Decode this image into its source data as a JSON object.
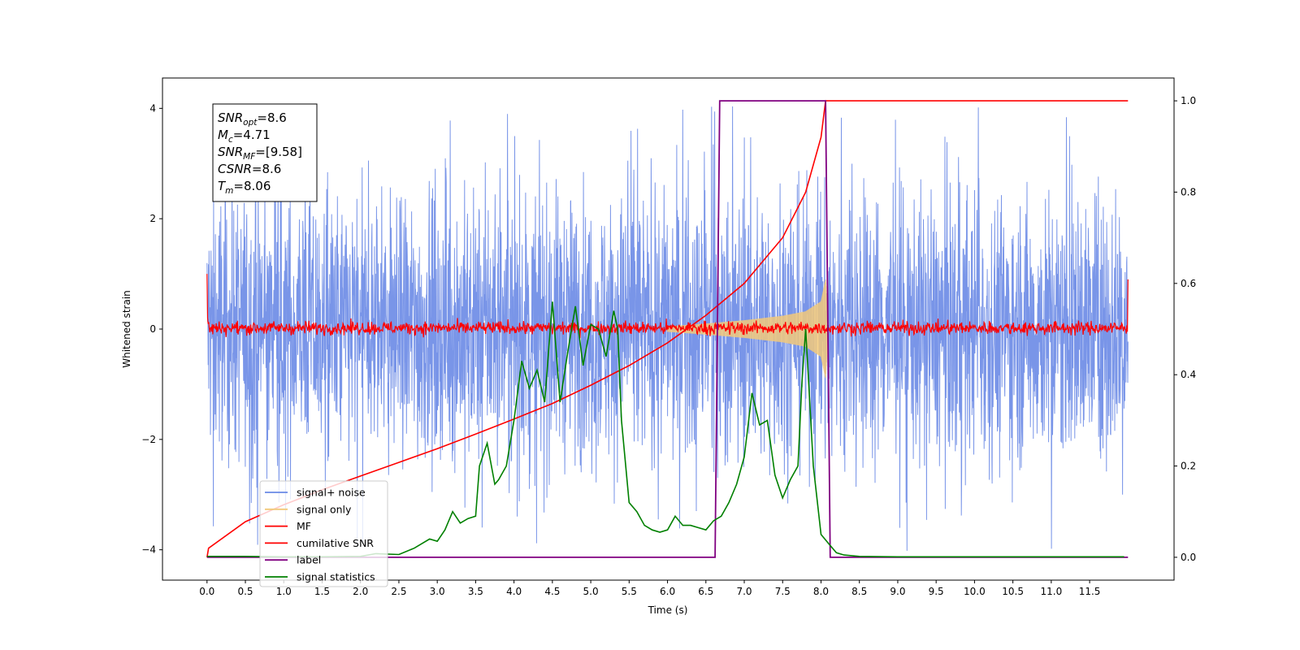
{
  "chart_data": {
    "type": "line",
    "xlabel": "Time (s)",
    "ylabel": "Whitened strain",
    "xlim": [
      -0.58,
      12.6
    ],
    "ylim_left": [
      -4.55,
      4.55
    ],
    "ylim_right": [
      -0.05,
      1.05
    ],
    "x_ticks": [
      0.0,
      0.5,
      1.0,
      1.5,
      2.0,
      2.5,
      3.0,
      3.5,
      4.0,
      4.5,
      5.0,
      5.5,
      6.0,
      6.5,
      7.0,
      7.5,
      8.0,
      8.5,
      9.0,
      9.5,
      10.0,
      10.5,
      11.0,
      11.5
    ],
    "x_tick_labels": [
      "0.0",
      "0.5",
      "1.0",
      "1.5",
      "2.0",
      "2.5",
      "3.0",
      "3.5",
      "4.0",
      "4.5",
      "5.0",
      "5.5",
      "6.0",
      "6.5",
      "7.0",
      "7.5",
      "8.0",
      "8.5",
      "9.0",
      "9.5",
      "10.0",
      "10.5",
      "11.0",
      "11.5"
    ],
    "y_ticks_left": [
      -4,
      -2,
      0,
      2,
      4
    ],
    "y_tick_labels_left": [
      "−4",
      "−2",
      "0",
      "2",
      "4"
    ],
    "y_ticks_right": [
      0.0,
      0.2,
      0.4,
      0.6,
      0.8,
      1.0
    ],
    "y_tick_labels_right": [
      "0.0",
      "0.2",
      "0.4",
      "0.6",
      "0.8",
      "1.0"
    ],
    "legend_placement": "lower-left",
    "annotation": {
      "placement": "top-left",
      "lines": [
        {
          "base": "SNR",
          "sub": "opt",
          "value": "=8.6"
        },
        {
          "base": "M",
          "sub": "c",
          "value": "=4.71"
        },
        {
          "base": "SNR",
          "sub": "MF",
          "value": "=[9.58]"
        },
        {
          "base": "CSNR",
          "sub": "",
          "value": "=8.6"
        },
        {
          "base": "T",
          "sub": "m",
          "value": "=8.06"
        }
      ]
    },
    "series": [
      {
        "name": "signal+ noise",
        "axis": "left",
        "color": "#6a8ae6",
        "note_style": "noise band, roughly ±2.5 with spikes to ±4",
        "envelope": {
          "x": [
            0.0,
            12.0
          ],
          "typical_amplitude": 2.3,
          "peak_amplitude": 4.1
        }
      },
      {
        "name": "signal only",
        "axis": "left",
        "color": "#f2c97a",
        "x": [
          6.0,
          6.5,
          7.0,
          7.5,
          7.8,
          8.0,
          8.06,
          8.1
        ],
        "amplitude": [
          0.05,
          0.1,
          0.16,
          0.24,
          0.32,
          0.5,
          0.9,
          0.0
        ]
      },
      {
        "name": "MF",
        "axis": "left",
        "color": "#ff0000",
        "start_value": 1.0,
        "end_value": 0.9,
        "typical_amplitude": 0.12
      },
      {
        "name": "cumilative SNR",
        "axis": "right",
        "color": "#ff0000",
        "x": [
          0.0,
          0.02,
          0.5,
          1.0,
          1.5,
          2.0,
          2.5,
          3.0,
          3.5,
          4.0,
          4.5,
          5.0,
          5.5,
          6.0,
          6.5,
          7.0,
          7.5,
          7.8,
          8.0,
          8.06,
          12.0
        ],
        "y": [
          0.0,
          0.02,
          0.078,
          0.115,
          0.148,
          0.178,
          0.208,
          0.238,
          0.27,
          0.303,
          0.337,
          0.377,
          0.42,
          0.47,
          0.53,
          0.6,
          0.7,
          0.8,
          0.92,
          1.0,
          1.0
        ]
      },
      {
        "name": "label",
        "axis": "right",
        "color": "#800080",
        "x": [
          0.0,
          6.62,
          6.68,
          8.06,
          8.12,
          12.0
        ],
        "y": [
          0.0,
          0.0,
          1.0,
          1.0,
          0.0,
          0.0
        ]
      },
      {
        "name": "signal statistics",
        "axis": "right",
        "color": "#008000",
        "x": [
          0.0,
          0.5,
          1.0,
          1.5,
          2.0,
          2.2,
          2.5,
          2.7,
          2.9,
          3.0,
          3.1,
          3.2,
          3.3,
          3.4,
          3.5,
          3.55,
          3.65,
          3.75,
          3.8,
          3.9,
          4.0,
          4.1,
          4.2,
          4.3,
          4.4,
          4.45,
          4.5,
          4.6,
          4.7,
          4.8,
          4.9,
          5.0,
          5.1,
          5.2,
          5.3,
          5.35,
          5.4,
          5.5,
          5.6,
          5.7,
          5.8,
          5.9,
          6.0,
          6.1,
          6.2,
          6.3,
          6.4,
          6.5,
          6.6,
          6.7,
          6.8,
          6.9,
          7.0,
          7.1,
          7.2,
          7.3,
          7.4,
          7.5,
          7.6,
          7.7,
          7.75,
          7.8,
          7.9,
          8.0,
          8.1,
          8.2,
          8.3,
          8.5,
          9.0,
          10.0,
          11.0,
          11.95
        ],
        "y": [
          0.002,
          0.002,
          0.001,
          0.001,
          0.002,
          0.008,
          0.006,
          0.02,
          0.04,
          0.035,
          0.06,
          0.1,
          0.075,
          0.085,
          0.09,
          0.2,
          0.25,
          0.16,
          0.17,
          0.2,
          0.3,
          0.43,
          0.37,
          0.41,
          0.34,
          0.45,
          0.56,
          0.34,
          0.45,
          0.55,
          0.42,
          0.51,
          0.5,
          0.44,
          0.54,
          0.5,
          0.3,
          0.12,
          0.1,
          0.07,
          0.06,
          0.055,
          0.06,
          0.09,
          0.07,
          0.07,
          0.065,
          0.06,
          0.08,
          0.09,
          0.12,
          0.16,
          0.22,
          0.36,
          0.29,
          0.3,
          0.18,
          0.13,
          0.17,
          0.2,
          0.38,
          0.5,
          0.2,
          0.05,
          0.03,
          0.01,
          0.005,
          0.002,
          0.001,
          0.001,
          0.001,
          0.001
        ]
      }
    ],
    "legend": [
      "signal+ noise",
      "signal only",
      "MF",
      "cumilative SNR",
      "label",
      "signal statistics"
    ]
  }
}
